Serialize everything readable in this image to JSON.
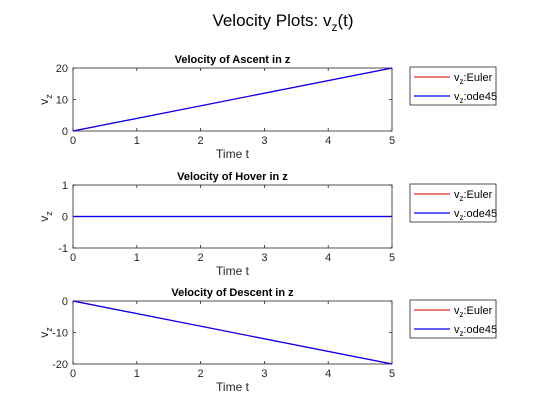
{
  "figure": {
    "suptitle": "Velocity Plots: v",
    "suptitle_sub": "z",
    "suptitle_tail": "(t)"
  },
  "legend": {
    "entries": [
      {
        "prefix": "v",
        "sub": "z",
        "suffix": ":Euler",
        "color": "#d62728"
      },
      {
        "prefix": "v",
        "sub": "z",
        "suffix": ":ode45",
        "color": "#0000ff"
      }
    ]
  },
  "chart_data": [
    {
      "type": "line",
      "title": "Velocity of Ascent in z",
      "xlabel": "Time t",
      "ylabel_main": "v",
      "ylabel_sub": "z",
      "xlim": [
        0,
        5
      ],
      "ylim": [
        0,
        20
      ],
      "xticks": [
        "0",
        "1",
        "2",
        "3",
        "4",
        "5"
      ],
      "yticks": [
        "0",
        "10",
        "20"
      ],
      "grid": false,
      "legend_position": "outside-right",
      "series": [
        {
          "name": "vz:Euler",
          "x": [
            0,
            5
          ],
          "y": [
            0,
            20
          ],
          "color": "#d62728"
        },
        {
          "name": "vz:ode45",
          "x": [
            0,
            5
          ],
          "y": [
            0,
            20
          ],
          "color": "#0000ff"
        }
      ]
    },
    {
      "type": "line",
      "title": "Velocity of Hover in z",
      "xlabel": "Time t",
      "ylabel_main": "v",
      "ylabel_sub": "z",
      "xlim": [
        0,
        5
      ],
      "ylim": [
        -1,
        1
      ],
      "xticks": [
        "0",
        "1",
        "2",
        "3",
        "4",
        "5"
      ],
      "yticks": [
        "-1",
        "0",
        "1"
      ],
      "grid": false,
      "legend_position": "outside-right",
      "series": [
        {
          "name": "vz:Euler",
          "x": [
            0,
            5
          ],
          "y": [
            0,
            0
          ],
          "color": "#d62728"
        },
        {
          "name": "vz:ode45",
          "x": [
            0,
            5
          ],
          "y": [
            0,
            0
          ],
          "color": "#0000ff"
        }
      ]
    },
    {
      "type": "line",
      "title": "Velocity of Descent in z",
      "xlabel": "Time t",
      "ylabel_main": "v",
      "ylabel_sub": "z",
      "xlim": [
        0,
        5
      ],
      "ylim": [
        -20,
        0
      ],
      "xticks": [
        "0",
        "1",
        "2",
        "3",
        "4",
        "5"
      ],
      "yticks": [
        "-20",
        "-10",
        "0"
      ],
      "grid": false,
      "legend_position": "outside-right",
      "series": [
        {
          "name": "vz:Euler",
          "x": [
            0,
            5
          ],
          "y": [
            0,
            -20
          ],
          "color": "#d62728"
        },
        {
          "name": "vz:ode45",
          "x": [
            0,
            5
          ],
          "y": [
            0,
            -20
          ],
          "color": "#0000ff"
        }
      ]
    }
  ]
}
